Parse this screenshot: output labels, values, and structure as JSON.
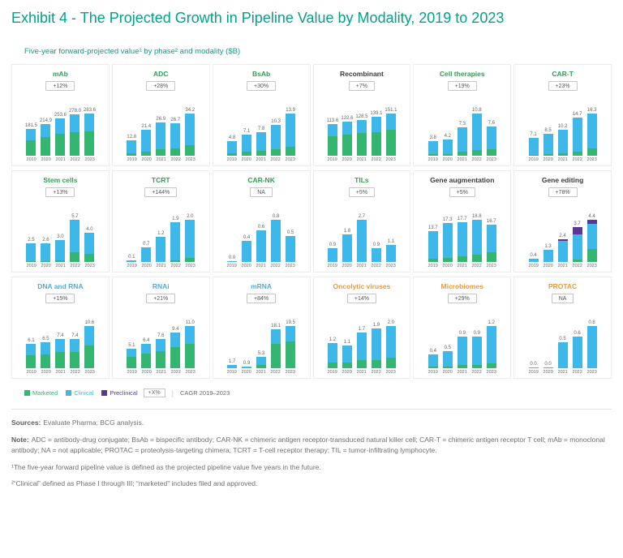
{
  "header": {
    "title": "Exhibit 4 - The Projected Growth in Pipeline Value by Modality, 2019 to 2023",
    "subtitle": "Five-year forward-projected value¹ by phase² and modality ($B)",
    "title_color": "#00A28A"
  },
  "legend": {
    "items": [
      {
        "label": "Marketed",
        "color": "#34B670"
      },
      {
        "label": "Clinical",
        "color": "#3EB8E8"
      },
      {
        "label": "Preclinical",
        "color": "#5B3794"
      }
    ],
    "cagr_box": "+X%",
    "cagr_label": "CAGR 2019–2023"
  },
  "chart_data": {
    "type": "bar",
    "stacked": true,
    "categories": [
      "2019",
      "2020",
      "2021",
      "2022",
      "2023"
    ],
    "unit": "$B",
    "series_colors": {
      "marketed": "#34B670",
      "clinical": "#3EB8E8",
      "preclinical": "#5B3794"
    },
    "charts": [
      {
        "title": "mAb",
        "title_color": "#2EA150",
        "cagr": "+12%",
        "totals": [
          "181.5",
          "214.9",
          "253.6",
          "278.0",
          "283.6"
        ],
        "series": {
          "marketed": [
            105,
            125,
            148,
            162,
            168
          ],
          "clinical": [
            76.5,
            89.9,
            105.6,
            116,
            115.6
          ],
          "preclinical": [
            0,
            0,
            0,
            0,
            0
          ]
        }
      },
      {
        "title": "ADC",
        "title_color": "#2EA150",
        "cagr": "+28%",
        "totals": [
          "12.8",
          "21.4",
          "26.9",
          "26.7",
          "34.2"
        ],
        "series": {
          "marketed": [
            2,
            3.5,
            5.5,
            6,
            8.5
          ],
          "clinical": [
            10.8,
            17.9,
            21.4,
            20.7,
            25.7
          ],
          "preclinical": [
            0,
            0,
            0,
            0,
            0
          ]
        }
      },
      {
        "title": "BsAb",
        "title_color": "#2EA150",
        "cagr": "+30%",
        "totals": [
          "4.8",
          "7.1",
          "7.8",
          "10.3",
          "13.9"
        ],
        "series": {
          "marketed": [
            0.9,
            1.4,
            1.7,
            2.2,
            3.0
          ],
          "clinical": [
            3.9,
            5.7,
            6.1,
            8.1,
            10.9
          ],
          "preclinical": [
            0,
            0,
            0,
            0,
            0
          ]
        }
      },
      {
        "title": "Recombinant",
        "title_color": "#3A3A3A",
        "cagr": "+7%",
        "totals": [
          "113.6",
          "122.6",
          "128.5",
          "139.1",
          "151.1"
        ],
        "series": {
          "marketed": [
            70,
            76,
            81,
            86,
            93
          ],
          "clinical": [
            43.6,
            46.6,
            47.5,
            53.1,
            58.1
          ],
          "preclinical": [
            0,
            0,
            0,
            0,
            0
          ]
        }
      },
      {
        "title": "Cell therapies",
        "title_color": "#2EA150",
        "cagr": "+19%",
        "totals": [
          "3.8",
          "4.2",
          "7.3",
          "10.8",
          "7.6"
        ],
        "series": {
          "marketed": [
            0.4,
            0.5,
            1.0,
            1.5,
            1.8
          ],
          "clinical": [
            3.4,
            3.7,
            6.3,
            9.3,
            5.8
          ],
          "preclinical": [
            0,
            0,
            0,
            0,
            0
          ]
        }
      },
      {
        "title": "CAR-T",
        "title_color": "#2EA150",
        "cagr": "+23%",
        "totals": [
          "7.1",
          "8.5",
          "10.2",
          "14.7",
          "16.3"
        ],
        "series": {
          "marketed": [
            0.3,
            0.6,
            1.0,
            1.8,
            2.8
          ],
          "clinical": [
            6.8,
            7.9,
            9.2,
            12.9,
            13.5
          ],
          "preclinical": [
            0,
            0,
            0,
            0,
            0
          ]
        }
      },
      {
        "title": "Stem cells",
        "title_color": "#2EA150",
        "cagr": "+13%",
        "totals": [
          "2.5",
          "2.6",
          "3.0",
          "5.7",
          "4.0"
        ],
        "series": {
          "marketed": [
            0.1,
            0.1,
            0.2,
            1.3,
            1.1
          ],
          "clinical": [
            2.4,
            2.5,
            2.8,
            4.4,
            2.9
          ],
          "preclinical": [
            0,
            0,
            0,
            0,
            0
          ]
        }
      },
      {
        "title": "TCRT",
        "title_color": "#2EA150",
        "cagr": "+144%",
        "totals": [
          "0.1",
          "0.7",
          "1.2",
          "1.9",
          "2.0"
        ],
        "series": {
          "marketed": [
            0,
            0,
            0,
            0.1,
            0.2
          ],
          "clinical": [
            0.1,
            0.7,
            1.2,
            1.8,
            1.8
          ],
          "preclinical": [
            0,
            0,
            0,
            0,
            0
          ]
        }
      },
      {
        "title": "CAR-NK",
        "title_color": "#2EA150",
        "cagr": "NA",
        "totals": [
          "0.0",
          "0.4",
          "0.6",
          "0.8",
          "0.5"
        ],
        "series": {
          "marketed": [
            0,
            0,
            0,
            0,
            0
          ],
          "clinical": [
            0,
            0.4,
            0.6,
            0.8,
            0.5
          ],
          "preclinical": [
            0,
            0,
            0,
            0,
            0
          ]
        }
      },
      {
        "title": "TILs",
        "title_color": "#2EA150",
        "cagr": "+5%",
        "totals": [
          "0.9",
          "1.8",
          "2.7",
          "0.9",
          "1.1"
        ],
        "series": {
          "marketed": [
            0,
            0,
            0,
            0,
            0
          ],
          "clinical": [
            0.9,
            1.8,
            2.7,
            0.9,
            1.1
          ],
          "preclinical": [
            0,
            0,
            0,
            0,
            0
          ]
        }
      },
      {
        "title": "Gene augmentation",
        "title_color": "#3A3A3A",
        "cagr": "+5%",
        "totals": [
          "13.7",
          "17.3",
          "17.7",
          "18.8",
          "16.7"
        ],
        "series": {
          "marketed": [
            1.5,
            2.0,
            2.5,
            3.5,
            4.5
          ],
          "clinical": [
            12.2,
            15.3,
            15.2,
            15.3,
            12.2
          ],
          "preclinical": [
            0,
            0,
            0,
            0,
            0
          ]
        }
      },
      {
        "title": "Gene editing",
        "title_color": "#3A3A3A",
        "cagr": "+78%",
        "totals": [
          "0.4",
          "1.3",
          "2.4",
          "3.7",
          "4.4"
        ],
        "series": {
          "marketed": [
            0,
            0,
            0,
            0.3,
            1.4
          ],
          "clinical": [
            0.4,
            1.3,
            2.2,
            2.6,
            2.6
          ],
          "preclinical": [
            0,
            0,
            0.2,
            0.8,
            0.4
          ]
        }
      },
      {
        "title": "DNA and RNA",
        "title_color": "#4FAEDC",
        "cagr": "+15%",
        "totals": [
          "6.1",
          "6.5",
          "7.4",
          "7.4",
          "10.6"
        ],
        "series": {
          "marketed": [
            3.4,
            3.6,
            4.1,
            4.1,
            5.8
          ],
          "clinical": [
            2.7,
            2.9,
            3.3,
            3.3,
            4.8
          ],
          "preclinical": [
            0,
            0,
            0,
            0,
            0
          ]
        }
      },
      {
        "title": "RNAi",
        "title_color": "#4FAEDC",
        "cagr": "+21%",
        "totals": [
          "5.1",
          "6.4",
          "7.6",
          "9.4",
          "11.0"
        ],
        "series": {
          "marketed": [
            3.0,
            3.9,
            4.6,
            5.6,
            6.4
          ],
          "clinical": [
            2.1,
            2.5,
            3.0,
            3.8,
            4.6
          ],
          "preclinical": [
            0,
            0,
            0,
            0,
            0
          ]
        }
      },
      {
        "title": "mRNA",
        "title_color": "#4FAEDC",
        "cagr": "+84%",
        "totals": [
          "1.7",
          "0.9",
          "5.3",
          "18.1",
          "19.5"
        ],
        "series": {
          "marketed": [
            0,
            0,
            1.7,
            11.5,
            12.5
          ],
          "clinical": [
            1.7,
            0.9,
            3.6,
            6.6,
            7.0
          ],
          "preclinical": [
            0,
            0,
            0,
            0,
            0
          ]
        }
      },
      {
        "title": "Oncolytic viruses",
        "title_color": "#E79A3C",
        "cagr": "+14%",
        "totals": [
          "1.2",
          "1.1",
          "1.7",
          "1.9",
          "2.0"
        ],
        "series": {
          "marketed": [
            0.3,
            0.3,
            0.4,
            0.4,
            0.5
          ],
          "clinical": [
            0.9,
            0.8,
            1.3,
            1.5,
            1.5
          ],
          "preclinical": [
            0,
            0,
            0,
            0,
            0
          ]
        }
      },
      {
        "title": "Microbiomes",
        "title_color": "#E79A3C",
        "cagr": "+29%",
        "totals": [
          "0.4",
          "0.5",
          "0.9",
          "0.9",
          "1.2"
        ],
        "series": {
          "marketed": [
            0.05,
            0.05,
            0.1,
            0.1,
            0.15
          ],
          "clinical": [
            0.35,
            0.45,
            0.8,
            0.8,
            1.05
          ],
          "preclinical": [
            0,
            0,
            0,
            0,
            0
          ]
        }
      },
      {
        "title": "PROTAC",
        "title_color": "#E79A3C",
        "cagr": "NA",
        "totals": [
          "0.0",
          "0.0",
          "0.5",
          "0.6",
          "0.8"
        ],
        "series": {
          "marketed": [
            0,
            0,
            0,
            0,
            0
          ],
          "clinical": [
            0,
            0,
            0.5,
            0.6,
            0.8
          ],
          "preclinical": [
            0,
            0,
            0,
            0,
            0
          ]
        }
      }
    ]
  },
  "footer": {
    "sources_label": "Sources:",
    "sources_text": "Evaluate Pharma; BCG analysis.",
    "note_label": "Note:",
    "note_text": "ADC = antibody-drug conjugate; BsAb = bispecific antibody; CAR-NK = chimeric antigen receptor-transduced natural killer cell; CAR-T = chimeric antigen receptor T cell; mAb = monoclonal antibody; NA = not applicable; PROTAC = proteolysis-targeting chimera; TCRT = T-cell receptor therapy; TIL = tumor-infiltrating lymphocyte.",
    "footnote1": "¹The five-year forward pipeline value is defined as the projected pipeline value five years in the future.",
    "footnote2": "²“Clinical” defined as Phase I through III; “marketed” includes filed and approved."
  }
}
